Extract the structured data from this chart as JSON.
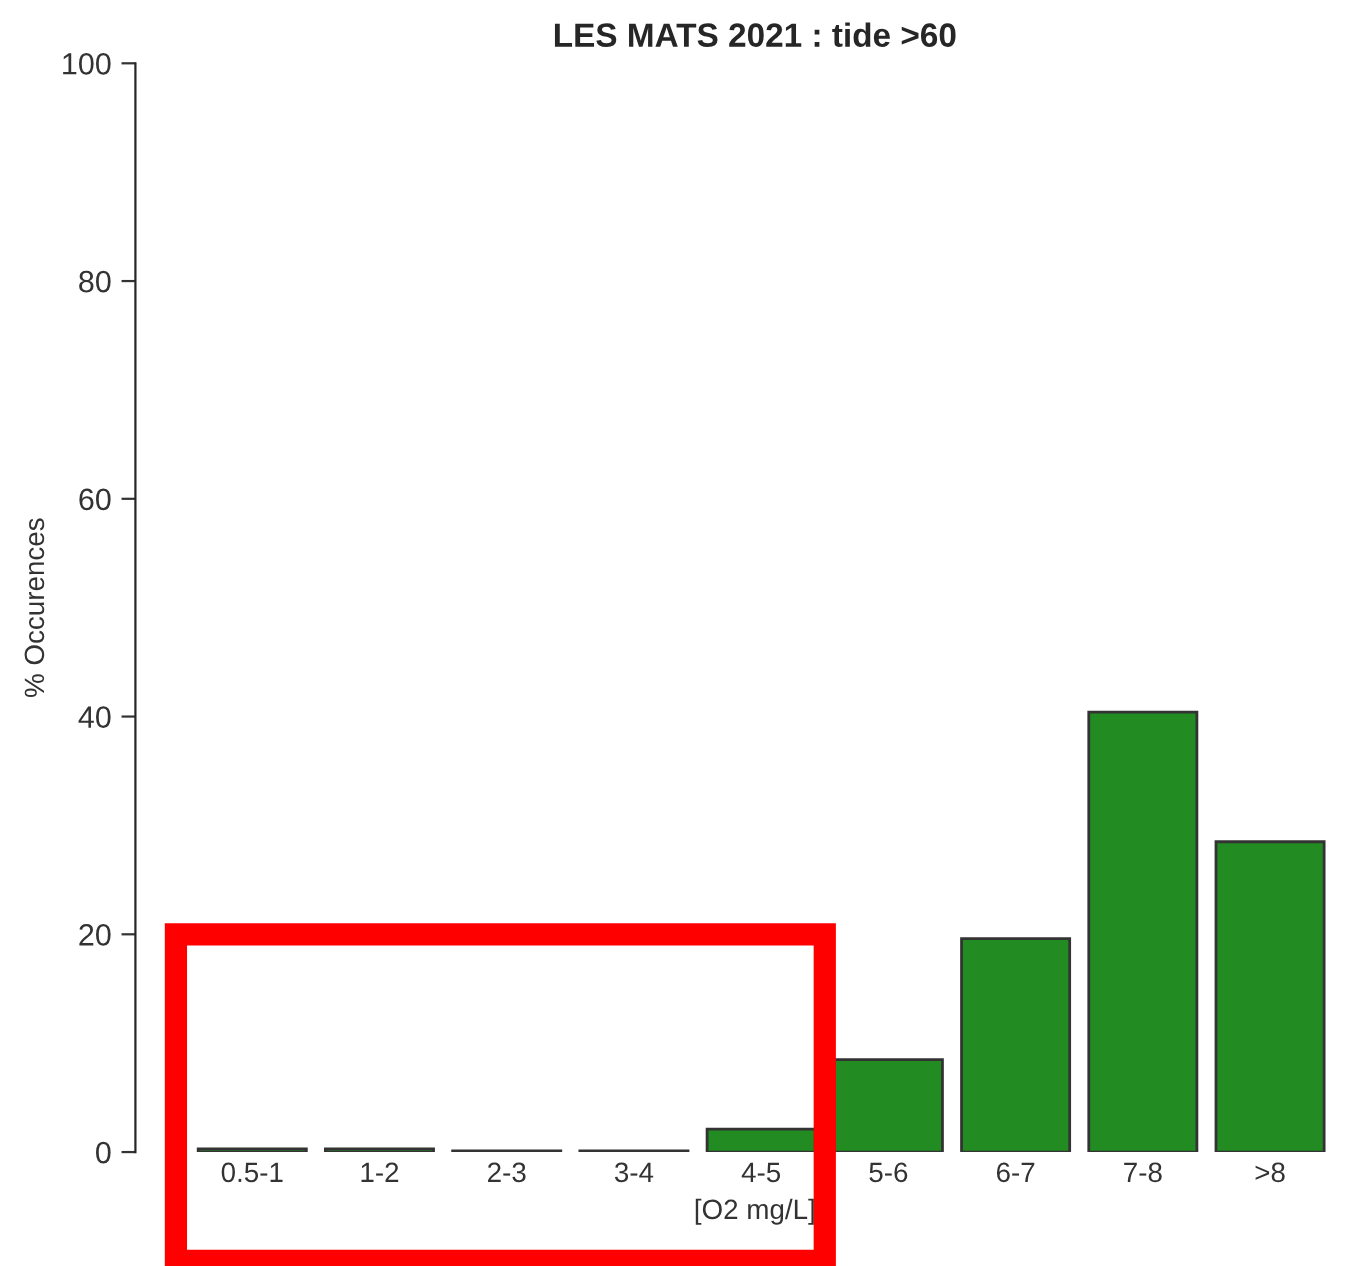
{
  "chart_data": {
    "type": "bar",
    "title": "LES MATS 2021 : tide >60",
    "xlabel": "[O2 mg/L]",
    "ylabel": "% Occurences",
    "categories": [
      "0.5-1",
      "1-2",
      "2-3",
      "3-4",
      "4-5",
      "5-6",
      "6-7",
      "7-8",
      ">8"
    ],
    "values": [
      0.3,
      0.3,
      0.1,
      0.1,
      2.1,
      8.5,
      19.6,
      40.4,
      28.5
    ],
    "color": "#228b22",
    "ylim": [
      0,
      100
    ],
    "yticks": [
      0,
      20,
      40,
      60,
      80,
      100
    ],
    "grid": false
  }
}
